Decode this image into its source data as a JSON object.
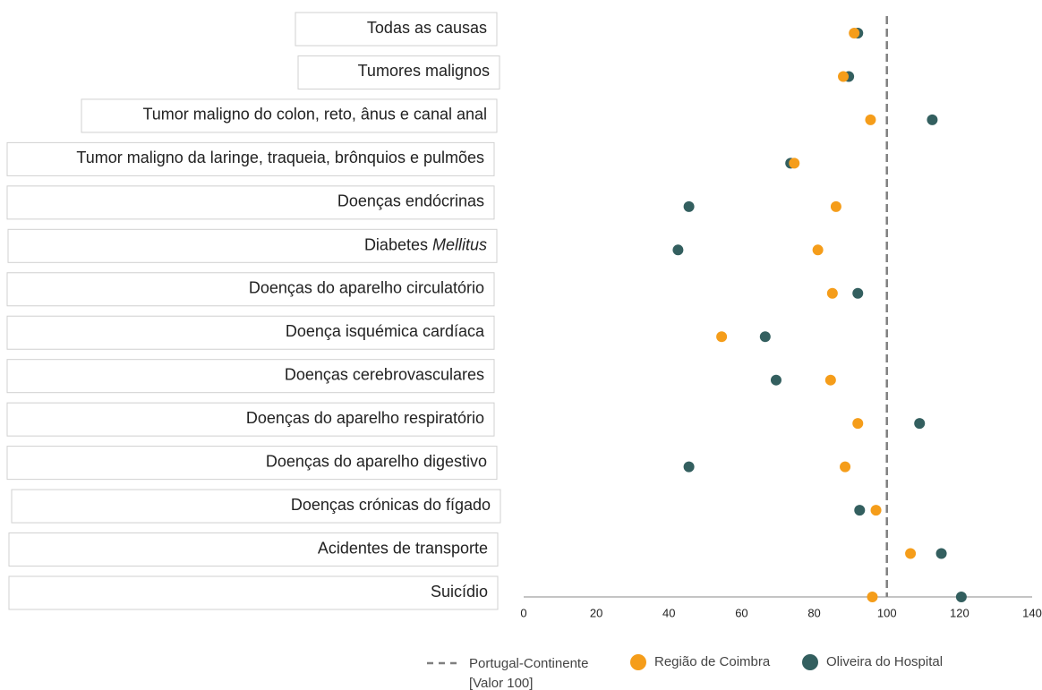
{
  "chart_data": {
    "type": "dot",
    "categories": [
      "Todas as causas",
      "Tumores malignos",
      "Tumor maligno do colon, reto, ânus e canal anal",
      "Tumor maligno da laringe, traqueia, brônquios e pulmões",
      "Doenças endócrinas",
      "Diabetes Mellitus",
      "Doenças do aparelho circulatório",
      "Doença isquémica cardíaca",
      "Doenças cerebrovasculares",
      "Doenças do aparelho respiratório",
      "Doenças do aparelho digestivo",
      "Doenças crónicas do fígado",
      "Acidentes de transporte",
      "Suicídio"
    ],
    "italic_last_word": [
      5
    ],
    "series": [
      {
        "name": "Região de Coimbra",
        "color": "#f59d1a",
        "values": [
          91,
          88,
          95.5,
          74.5,
          86,
          81,
          85,
          54.5,
          84.5,
          92,
          88.5,
          97,
          106.5,
          96
        ]
      },
      {
        "name": "Oliveira do Hospital",
        "color": "#335f5f",
        "values": [
          92,
          89.5,
          112.5,
          73.5,
          45.5,
          42.5,
          92,
          66.5,
          69.5,
          109,
          45.5,
          92.5,
          115,
          120.5
        ]
      }
    ],
    "reference": {
      "value": 100,
      "label_lines": [
        "Portugal-Continente",
        "[Valor 100]"
      ],
      "color": "#808080"
    },
    "xlim": [
      0,
      140
    ],
    "xticks": [
      0,
      20,
      40,
      60,
      80,
      100,
      120,
      140
    ]
  }
}
